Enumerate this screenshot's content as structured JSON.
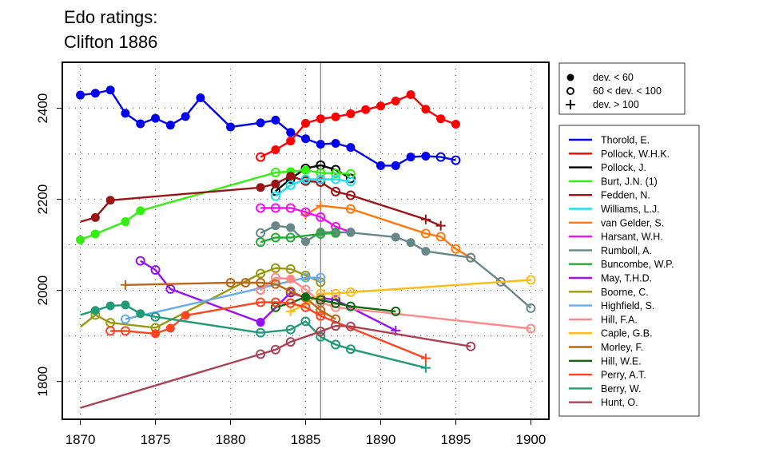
{
  "chart_data": {
    "type": "line",
    "title": [
      "Edo ratings:",
      "Clifton 1886"
    ],
    "xlabel": "",
    "ylabel": "",
    "xlim": [
      1868.8,
      1901.2
    ],
    "ylim": [
      1717,
      2501
    ],
    "x_ticks": [
      1870,
      1875,
      1880,
      1885,
      1890,
      1895,
      1900
    ],
    "x_tick_labels": [
      "1870",
      "1875",
      "1880",
      "1885",
      "1890",
      "1895",
      "1900"
    ],
    "y_ticks": [
      1800,
      2000,
      2200,
      2400
    ],
    "y_tick_labels": [
      "1800",
      "2000",
      "2200",
      "2400"
    ],
    "grid": "dotted at ticks and midpoints",
    "reference_line": {
      "x": 1886,
      "color": "#808080"
    },
    "marker_legend": {
      "position": "top-right, outside plot",
      "items": [
        {
          "marker": "filled",
          "label": "dev. < 60"
        },
        {
          "marker": "open",
          "label": "60 < dev. < 100"
        },
        {
          "marker": "plus",
          "label": "dev. > 100"
        }
      ]
    },
    "series_legend_position": "right, outside plot",
    "series": [
      {
        "name": "Thorold, E.",
        "color": "#0000ee",
        "points": [
          [
            1870,
            2429,
            "f"
          ],
          [
            1871,
            2433,
            "f"
          ],
          [
            1872,
            2440,
            "f"
          ],
          [
            1873,
            2389,
            "f"
          ],
          [
            1874,
            2366,
            "f"
          ],
          [
            1875,
            2378,
            "f"
          ],
          [
            1876,
            2363,
            "f"
          ],
          [
            1877,
            2382,
            "f"
          ],
          [
            1878,
            2423,
            "f"
          ],
          [
            1880,
            2359,
            "f"
          ],
          [
            1882,
            2368,
            "f"
          ],
          [
            1883,
            2374,
            "f"
          ],
          [
            1884,
            2347,
            "f"
          ],
          [
            1885,
            2333,
            "f"
          ],
          [
            1886,
            2321,
            "f"
          ],
          [
            1887,
            2323,
            "f"
          ],
          [
            1888,
            2314,
            "f"
          ],
          [
            1890,
            2274,
            "f"
          ],
          [
            1891,
            2274,
            "f"
          ],
          [
            1892,
            2293,
            "f"
          ],
          [
            1893,
            2295,
            "f"
          ],
          [
            1894,
            2293,
            "o"
          ],
          [
            1895,
            2286,
            "o"
          ]
        ]
      },
      {
        "name": "Pollock, W.H.K.",
        "color": "#ff0000",
        "points": [
          [
            1882,
            2293,
            "o"
          ],
          [
            1883,
            2309,
            "f"
          ],
          [
            1884,
            2328,
            "f"
          ],
          [
            1885,
            2367,
            "f"
          ],
          [
            1886,
            2377,
            "f"
          ],
          [
            1887,
            2381,
            "f"
          ],
          [
            1888,
            2388,
            "f"
          ],
          [
            1889,
            2397,
            "f"
          ],
          [
            1890,
            2405,
            "f"
          ],
          [
            1891,
            2416,
            "f"
          ],
          [
            1892,
            2430,
            "f"
          ],
          [
            1893,
            2398,
            "f"
          ],
          [
            1894,
            2377,
            "f"
          ],
          [
            1895,
            2365,
            "f"
          ]
        ]
      },
      {
        "name": "Pollock, J.",
        "color": "#000000",
        "points": [
          [
            1883,
            2218,
            "o"
          ],
          [
            1884,
            2245,
            "o"
          ],
          [
            1885,
            2268,
            "o"
          ],
          [
            1886,
            2275,
            "o"
          ],
          [
            1887,
            2265,
            "o"
          ],
          [
            1888,
            2246,
            "o"
          ]
        ]
      },
      {
        "name": "Burt, J.N. (1)",
        "color": "#33ee11",
        "points": [
          [
            1870,
            2111,
            "f"
          ],
          [
            1871,
            2124,
            "f"
          ],
          [
            1873,
            2151,
            "f"
          ],
          [
            1874,
            2175,
            "f"
          ],
          [
            1883,
            2259,
            "o"
          ],
          [
            1884,
            2261,
            "f"
          ],
          [
            1885,
            2264,
            "f"
          ],
          [
            1886,
            2258,
            "o"
          ],
          [
            1887,
            2257,
            "o"
          ],
          [
            1888,
            2256,
            "o"
          ]
        ]
      },
      {
        "name": "Fedden, N.",
        "color": "#991515",
        "points": [
          [
            1870,
            2151,
            "n"
          ],
          [
            1871,
            2160,
            "f"
          ],
          [
            1872,
            2198,
            "f"
          ],
          [
            1882,
            2226,
            "f"
          ],
          [
            1883,
            2234,
            "f"
          ],
          [
            1884,
            2251,
            "f"
          ],
          [
            1885,
            2240,
            "o"
          ],
          [
            1886,
            2238,
            "o"
          ],
          [
            1887,
            2217,
            "o"
          ],
          [
            1888,
            2209,
            "o"
          ],
          [
            1893,
            2156,
            "p"
          ],
          [
            1894,
            2142,
            "p"
          ]
        ]
      },
      {
        "name": "Williams, L.J.",
        "color": "#22ddee",
        "points": [
          [
            1883,
            2207,
            "o"
          ],
          [
            1884,
            2231,
            "o"
          ],
          [
            1885,
            2244,
            "o"
          ],
          [
            1886,
            2244,
            "o"
          ],
          [
            1887,
            2244,
            "o"
          ],
          [
            1888,
            2239,
            "o"
          ]
        ]
      },
      {
        "name": "van Gelder, S.",
        "color": "#ff7711",
        "points": [
          [
            1885,
            2166,
            "p"
          ],
          [
            1886,
            2186,
            "p"
          ],
          [
            1888,
            2179,
            "o"
          ],
          [
            1893,
            2125,
            "o"
          ],
          [
            1894,
            2118,
            "o"
          ],
          [
            1895,
            2091,
            "o"
          ],
          [
            1896,
            2072,
            "o"
          ]
        ]
      },
      {
        "name": "Harsant, W.H.",
        "color": "#ee11ee",
        "points": [
          [
            1882,
            2181,
            "o"
          ],
          [
            1883,
            2181,
            "o"
          ],
          [
            1884,
            2181,
            "o"
          ],
          [
            1885,
            2172,
            "o"
          ],
          [
            1886,
            2161,
            "o"
          ],
          [
            1887,
            2140,
            "o"
          ],
          [
            1888,
            2128,
            "f"
          ]
        ]
      },
      {
        "name": "Rumboll, A.",
        "color": "#668888",
        "points": [
          [
            1882,
            2126,
            "o"
          ],
          [
            1883,
            2142,
            "f"
          ],
          [
            1884,
            2138,
            "f"
          ],
          [
            1885,
            2107,
            "f"
          ],
          [
            1886,
            2128,
            "f"
          ],
          [
            1887,
            2128,
            "f"
          ],
          [
            1888,
            2127,
            "f"
          ],
          [
            1891,
            2117,
            "f"
          ],
          [
            1892,
            2105,
            "f"
          ],
          [
            1893,
            2086,
            "f"
          ],
          [
            1896,
            2072,
            "o"
          ],
          [
            1898,
            2019,
            "o"
          ],
          [
            1900,
            1961,
            "o"
          ]
        ]
      },
      {
        "name": "Buncombe, W.P.",
        "color": "#22aa33",
        "points": [
          [
            1882,
            2106,
            "o"
          ],
          [
            1883,
            2116,
            "o"
          ],
          [
            1884,
            2116,
            "o"
          ],
          [
            1886,
            2124,
            "o"
          ],
          [
            1887,
            2126,
            "o"
          ]
        ]
      },
      {
        "name": "May, T.H.D.",
        "color": "#9911ee",
        "points": [
          [
            1874,
            2065,
            "o"
          ],
          [
            1875,
            2045,
            "o"
          ],
          [
            1876,
            2003,
            "o"
          ],
          [
            1882,
            1930,
            "f"
          ],
          [
            1884,
            1995,
            "o"
          ],
          [
            1885,
            1984,
            "o"
          ],
          [
            1886,
            1984,
            "o"
          ],
          [
            1887,
            1979,
            "o"
          ],
          [
            1891,
            1912,
            "p"
          ]
        ]
      },
      {
        "name": "Boorne, C.",
        "color": "#999911",
        "points": [
          [
            1870,
            1920,
            "n"
          ],
          [
            1871,
            1946,
            "o"
          ],
          [
            1872,
            1929,
            "o"
          ],
          [
            1875,
            1918,
            "o"
          ],
          [
            1882,
            2037,
            "o"
          ],
          [
            1883,
            2049,
            "o"
          ],
          [
            1884,
            2047,
            "o"
          ],
          [
            1885,
            2033,
            "o"
          ],
          [
            1886,
            2018,
            "o"
          ]
        ]
      },
      {
        "name": "Highfield, S.",
        "color": "#66aaee",
        "points": [
          [
            1873,
            1937,
            "o"
          ],
          [
            1882,
            2005,
            "n"
          ],
          [
            1885,
            2028,
            "o"
          ],
          [
            1886,
            2028,
            "o"
          ]
        ]
      },
      {
        "name": "Hill, F.A.",
        "color": "#ff8888",
        "points": [
          [
            1882,
            2001,
            "o"
          ],
          [
            1883,
            2028,
            "o"
          ],
          [
            1884,
            2025,
            "f"
          ],
          [
            1885,
            2002,
            "o"
          ],
          [
            1886,
            1974,
            "o"
          ],
          [
            1887,
            1963,
            "o"
          ],
          [
            1900,
            1916,
            "o"
          ]
        ]
      },
      {
        "name": "Caple, G.B.",
        "color": "#ffbb11",
        "points": [
          [
            1884,
            1954,
            "p"
          ],
          [
            1885,
            1970,
            "p"
          ],
          [
            1886,
            1993,
            "o"
          ],
          [
            1887,
            1993,
            "o"
          ],
          [
            1888,
            1996,
            "o"
          ],
          [
            1900,
            2023,
            "o"
          ]
        ]
      },
      {
        "name": "Morley, F.",
        "color": "#bb6611",
        "points": [
          [
            1873,
            2012,
            "p"
          ],
          [
            1880,
            2017,
            "o"
          ],
          [
            1881,
            2017,
            "o"
          ],
          [
            1882,
            2017,
            "o"
          ],
          [
            1883,
            2014,
            "o"
          ],
          [
            1884,
            1998,
            "o"
          ],
          [
            1885,
            1984,
            "o"
          ],
          [
            1886,
            1956,
            "o"
          ],
          [
            1887,
            1937,
            "o"
          ]
        ]
      },
      {
        "name": "Hill, W.E.",
        "color": "#116611",
        "points": [
          [
            1883,
            1963,
            "o"
          ],
          [
            1884,
            1972,
            "o"
          ],
          [
            1885,
            1986,
            "f"
          ],
          [
            1886,
            1979,
            "o"
          ],
          [
            1887,
            1972,
            "o"
          ],
          [
            1888,
            1965,
            "o"
          ],
          [
            1891,
            1954,
            "o"
          ]
        ]
      },
      {
        "name": "Perry, A.T.",
        "color": "#ff4422",
        "points": [
          [
            1872,
            1911,
            "o"
          ],
          [
            1873,
            1911,
            "o"
          ],
          [
            1875,
            1905,
            "f"
          ],
          [
            1876,
            1917,
            "f"
          ],
          [
            1877,
            1945,
            "f"
          ],
          [
            1882,
            1974,
            "o"
          ],
          [
            1883,
            1974,
            "o"
          ],
          [
            1884,
            1972,
            "o"
          ],
          [
            1885,
            1963,
            "o"
          ],
          [
            1886,
            1944,
            "o"
          ],
          [
            1893,
            1851,
            "p"
          ]
        ]
      },
      {
        "name": "Berry, W.",
        "color": "#229977",
        "points": [
          [
            1870,
            1946,
            "n"
          ],
          [
            1871,
            1956,
            "f"
          ],
          [
            1872,
            1966,
            "f"
          ],
          [
            1873,
            1968,
            "f"
          ],
          [
            1874,
            1949,
            "f"
          ],
          [
            1875,
            1942,
            "o"
          ],
          [
            1882,
            1907,
            "o"
          ],
          [
            1884,
            1914,
            "o"
          ],
          [
            1885,
            1932,
            "o"
          ],
          [
            1886,
            1898,
            "o"
          ],
          [
            1887,
            1881,
            "o"
          ],
          [
            1888,
            1871,
            "o"
          ],
          [
            1893,
            1830,
            "p"
          ]
        ]
      },
      {
        "name": "Hunt, O.",
        "color": "#aa4455",
        "points": [
          [
            1870,
            1742,
            "n"
          ],
          [
            1882,
            1860,
            "o"
          ],
          [
            1883,
            1870,
            "o"
          ],
          [
            1884,
            1887,
            "o"
          ],
          [
            1886,
            1910,
            "o"
          ],
          [
            1887,
            1922,
            "o"
          ],
          [
            1888,
            1921,
            "o"
          ],
          [
            1896,
            1877,
            "o"
          ]
        ]
      }
    ]
  }
}
